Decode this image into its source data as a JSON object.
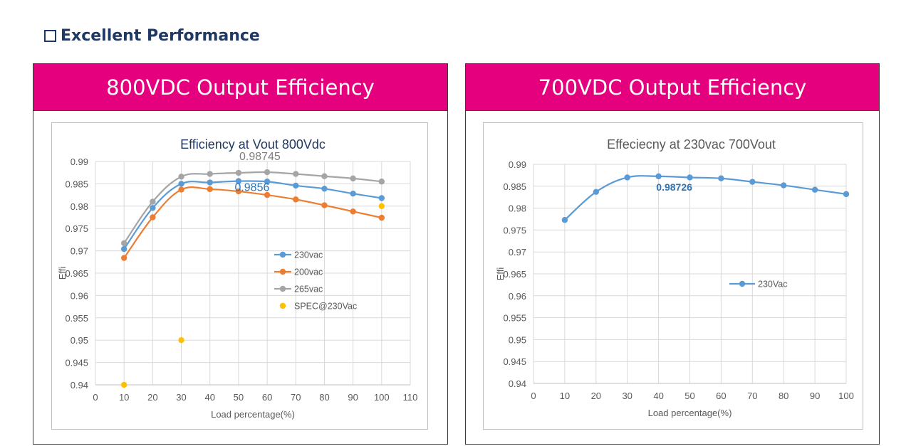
{
  "heading": {
    "text": "Excellent Performance"
  },
  "panels": [
    {
      "title": "800VDC Output Efficiency"
    },
    {
      "title": "700VDC Output Efficiency"
    }
  ],
  "colors": {
    "accent": "#e5007e",
    "heading": "#1f3864",
    "series_blue": "#5b9bd5",
    "series_orange": "#ed7d31",
    "series_gray": "#a5a5a5",
    "series_yellow": "#ffc000"
  },
  "chart_data": [
    {
      "type": "line",
      "title": "Efficiency at Vout 800Vdc",
      "xlabel": "Load percentage(%)",
      "ylabel": "Effi",
      "xlim": [
        0,
        110
      ],
      "ylim": [
        0.94,
        0.99
      ],
      "xticks": [
        0,
        10,
        20,
        30,
        40,
        50,
        60,
        70,
        80,
        90,
        100,
        110
      ],
      "yticks": [
        0.94,
        0.945,
        0.95,
        0.955,
        0.96,
        0.965,
        0.97,
        0.975,
        0.98,
        0.985,
        0.99
      ],
      "ytick_labels": [
        "0.94",
        "0.945",
        "0.95",
        "0.955",
        "0.96",
        "0.965",
        "0.97",
        "0.975",
        "0.98",
        "0.985",
        "0.99"
      ],
      "grid": true,
      "legend": "right",
      "series": [
        {
          "name": "230vac",
          "color": "#5b9bd5",
          "style": "smooth-line",
          "x": [
            10,
            20,
            30,
            40,
            50,
            60,
            70,
            80,
            90,
            100
          ],
          "y": [
            0.9704,
            0.9796,
            0.985,
            0.9853,
            0.9856,
            0.9855,
            0.9846,
            0.9839,
            0.9828,
            0.9818
          ]
        },
        {
          "name": "200vac",
          "color": "#ed7d31",
          "style": "smooth-line",
          "x": [
            10,
            20,
            30,
            40,
            50,
            60,
            70,
            80,
            90,
            100
          ],
          "y": [
            0.9684,
            0.9775,
            0.9837,
            0.9838,
            0.9833,
            0.9825,
            0.9815,
            0.9802,
            0.9788,
            0.9774
          ]
        },
        {
          "name": "265vac",
          "color": "#a5a5a5",
          "style": "smooth-line",
          "x": [
            10,
            20,
            30,
            40,
            50,
            60,
            70,
            80,
            90,
            100
          ],
          "y": [
            0.9717,
            0.981,
            0.9866,
            0.9872,
            0.98745,
            0.9876,
            0.9872,
            0.9867,
            0.9862,
            0.9855
          ]
        },
        {
          "name": "SPEC@230Vac",
          "color": "#ffc000",
          "style": "markers",
          "x": [
            10,
            30,
            100
          ],
          "y": [
            0.94,
            0.95,
            0.98
          ]
        }
      ],
      "annotations": [
        {
          "text": "0.98745",
          "x": 50,
          "y": 0.98745,
          "color": "#7f7f7f"
        },
        {
          "text": "0.9856",
          "x": 50,
          "y": 0.9856,
          "color": "#2e75b6"
        }
      ]
    },
    {
      "type": "line",
      "title": "Effeciecny at 230vac 700Vout",
      "xlabel": "Load percentage(%)",
      "ylabel": "Effi",
      "xlim": [
        0,
        100
      ],
      "ylim": [
        0.94,
        0.99
      ],
      "xticks": [
        0,
        10,
        20,
        30,
        40,
        50,
        60,
        70,
        80,
        90,
        100
      ],
      "yticks": [
        0.94,
        0.945,
        0.95,
        0.955,
        0.96,
        0.965,
        0.97,
        0.975,
        0.98,
        0.985,
        0.99
      ],
      "ytick_labels": [
        "0.94",
        "0.945",
        "0.95",
        "0.955",
        "0.96",
        "0.965",
        "0.97",
        "0.975",
        "0.98",
        "0.985",
        "0.99"
      ],
      "grid": true,
      "legend": "right",
      "series": [
        {
          "name": "230Vac",
          "color": "#5b9bd5",
          "style": "smooth-line",
          "x": [
            10,
            20,
            30,
            40,
            50,
            60,
            70,
            80,
            90,
            100
          ],
          "y": [
            0.9773,
            0.9837,
            0.987,
            0.98726,
            0.987,
            0.9868,
            0.986,
            0.9852,
            0.9842,
            0.9832
          ]
        }
      ],
      "annotations": [
        {
          "text": "0.98726",
          "x": 40,
          "y": 0.98726,
          "color": "#2e75b6"
        }
      ]
    }
  ]
}
